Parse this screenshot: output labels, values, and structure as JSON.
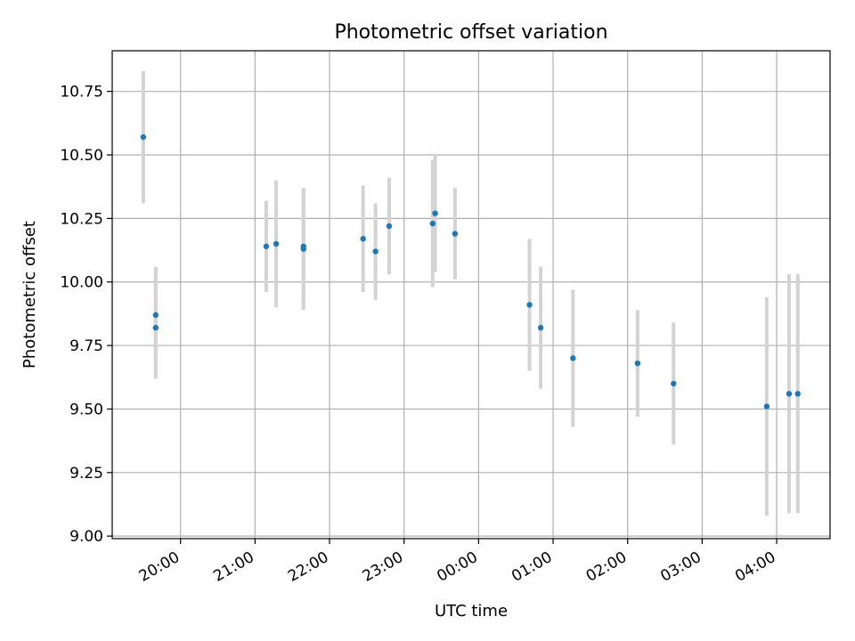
{
  "chart_data": {
    "type": "scatter",
    "title": "Photometric offset variation",
    "xlabel": "UTC time",
    "ylabel": "Photometric offset",
    "x_tick_labels": [
      "20:00",
      "21:00",
      "22:00",
      "23:00",
      "00:00",
      "01:00",
      "02:00",
      "03:00",
      "04:00"
    ],
    "y_tick_labels": [
      "9.00",
      "9.25",
      "9.50",
      "9.75",
      "10.00",
      "10.25",
      "10.50",
      "10.75"
    ],
    "xlim": [
      "19:05",
      "04:43"
    ],
    "ylim": [
      8.99,
      10.91
    ],
    "grid": true,
    "colors": {
      "marker": "#1f77b4",
      "errorbar": "#d3d3d3",
      "grid": "#b0b0b0"
    },
    "points": [
      {
        "x": "19:30",
        "y": 10.57,
        "yerr": 0.26
      },
      {
        "x": "19:40",
        "y": 9.87,
        "yerr": 0.19
      },
      {
        "x": "19:40",
        "y": 9.82,
        "yerr": 0.2
      },
      {
        "x": "21:09",
        "y": 10.14,
        "yerr": 0.18
      },
      {
        "x": "21:17",
        "y": 10.15,
        "yerr": 0.25
      },
      {
        "x": "21:39",
        "y": 10.14,
        "yerr": 0.23
      },
      {
        "x": "21:39",
        "y": 10.13,
        "yerr": 0.24
      },
      {
        "x": "22:27",
        "y": 10.17,
        "yerr": 0.21
      },
      {
        "x": "22:37",
        "y": 10.12,
        "yerr": 0.19
      },
      {
        "x": "22:48",
        "y": 10.22,
        "yerr": 0.19
      },
      {
        "x": "23:23",
        "y": 10.23,
        "yerr": 0.25
      },
      {
        "x": "23:25",
        "y": 10.27,
        "yerr": 0.23
      },
      {
        "x": "23:41",
        "y": 10.19,
        "yerr": 0.18
      },
      {
        "x": "00:41",
        "y": 9.91,
        "yerr": 0.26
      },
      {
        "x": "00:50",
        "y": 9.82,
        "yerr": 0.24
      },
      {
        "x": "01:16",
        "y": 9.7,
        "yerr": 0.27
      },
      {
        "x": "02:08",
        "y": 9.68,
        "yerr": 0.21
      },
      {
        "x": "02:37",
        "y": 9.6,
        "yerr": 0.24
      },
      {
        "x": "03:52",
        "y": 9.51,
        "yerr": 0.43
      },
      {
        "x": "04:10",
        "y": 9.56,
        "yerr": 0.47
      },
      {
        "x": "04:17",
        "y": 9.56,
        "yerr": 0.47
      }
    ]
  }
}
